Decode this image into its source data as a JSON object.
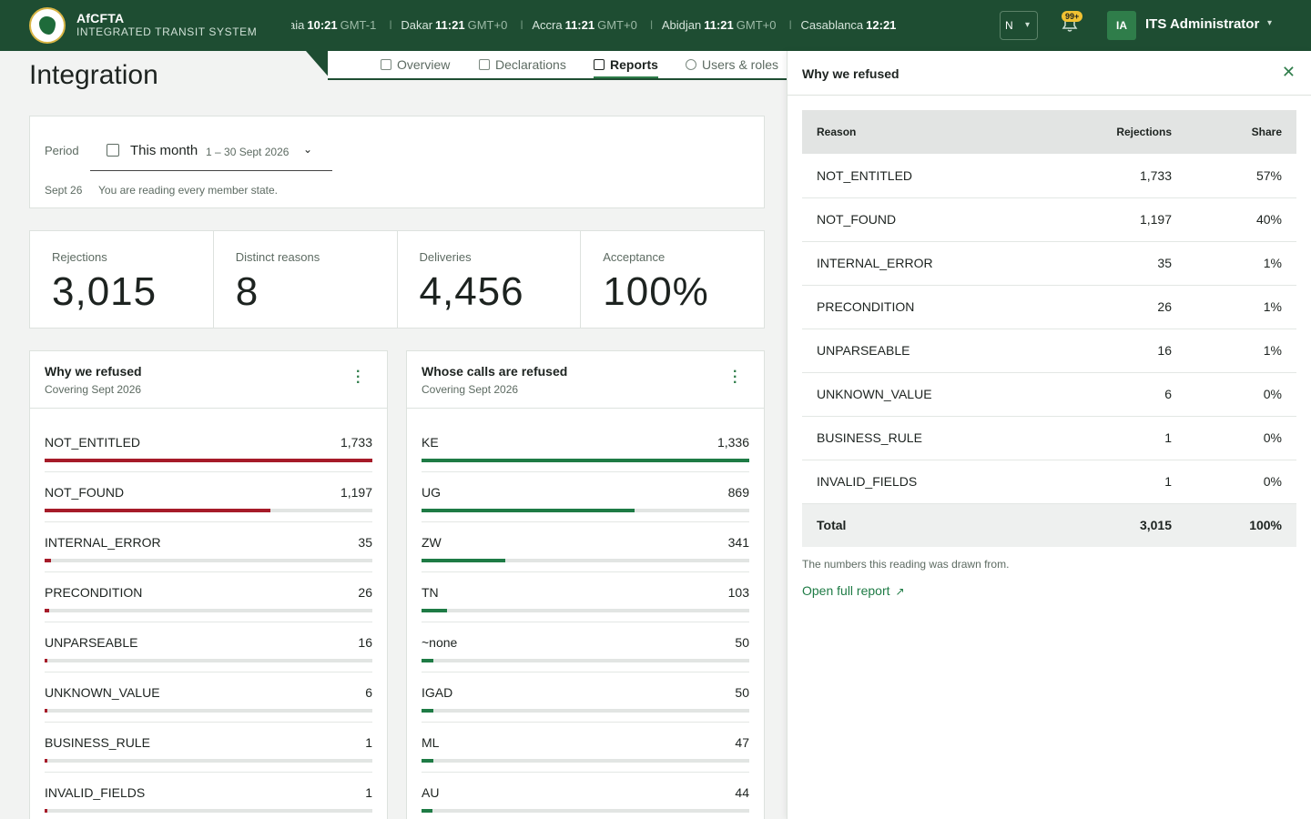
{
  "brand": {
    "name": "AfCFTA",
    "subtitle": "INTEGRATED TRANSIT SYSTEM"
  },
  "clocks": [
    {
      "city": "Praia",
      "time": "10:21",
      "zone": "GMT-1"
    },
    {
      "city": "Dakar",
      "time": "11:21",
      "zone": "GMT+0"
    },
    {
      "city": "Accra",
      "time": "11:21",
      "zone": "GMT+0"
    },
    {
      "city": "Abidjan",
      "time": "11:21",
      "zone": "GMT+0"
    },
    {
      "city": "Casablanca",
      "time": "12:21",
      "zone": ""
    }
  ],
  "header": {
    "language": "N",
    "notifications_badge": "99+",
    "user_initials": "IA",
    "user_name": "ITS Administrator"
  },
  "page": {
    "title": "Integration"
  },
  "tabs": [
    {
      "label": "Overview",
      "icon": "chart-icon"
    },
    {
      "label": "Declarations",
      "icon": "document-icon"
    },
    {
      "label": "Reports",
      "icon": "table-icon",
      "active": true
    },
    {
      "label": "Users & roles",
      "icon": "users-icon"
    }
  ],
  "period": {
    "label": "Period",
    "value": "This month",
    "range": "1 – 30 Sept 2026",
    "note_date": "Sept 26",
    "note": "You are reading every member state."
  },
  "kpis": [
    {
      "label": "Rejections",
      "value": "3,015"
    },
    {
      "label": "Distinct reasons",
      "value": "8"
    },
    {
      "label": "Deliveries",
      "value": "4,456"
    },
    {
      "label": "Acceptance",
      "value": "100%"
    }
  ],
  "reasons_card": {
    "title": "Why we refused",
    "subtitle": "Covering Sept 2026",
    "rows": [
      {
        "name": "NOT_ENTITLED",
        "value": "1,733",
        "fraction": 1.0
      },
      {
        "name": "NOT_FOUND",
        "value": "1,197",
        "fraction": 0.69
      },
      {
        "name": "INTERNAL_ERROR",
        "value": "35",
        "fraction": 0.02
      },
      {
        "name": "PRECONDITION",
        "value": "26",
        "fraction": 0.015
      },
      {
        "name": "UNPARSEABLE",
        "value": "16",
        "fraction": 0.009
      },
      {
        "name": "UNKNOWN_VALUE",
        "value": "6",
        "fraction": 0.004
      },
      {
        "name": "BUSINESS_RULE",
        "value": "1",
        "fraction": 0.002
      },
      {
        "name": "INVALID_FIELDS",
        "value": "1",
        "fraction": 0.002
      }
    ]
  },
  "callers_card": {
    "title": "Whose calls are refused",
    "subtitle": "Covering Sept 2026",
    "rows": [
      {
        "name": "KE",
        "value": "1,336",
        "fraction": 1.0
      },
      {
        "name": "UG",
        "value": "869",
        "fraction": 0.65
      },
      {
        "name": "ZW",
        "value": "341",
        "fraction": 0.255
      },
      {
        "name": "TN",
        "value": "103",
        "fraction": 0.077
      },
      {
        "name": "~none",
        "value": "50",
        "fraction": 0.037
      },
      {
        "name": "IGAD",
        "value": "50",
        "fraction": 0.037
      },
      {
        "name": "ML",
        "value": "47",
        "fraction": 0.035
      },
      {
        "name": "AU",
        "value": "44",
        "fraction": 0.033
      }
    ]
  },
  "panel": {
    "title": "Why we refused",
    "columns": {
      "reason": "Reason",
      "rejections": "Rejections",
      "share": "Share"
    },
    "rows": [
      {
        "reason": "NOT_ENTITLED",
        "rejections": "1,733",
        "share": "57%"
      },
      {
        "reason": "NOT_FOUND",
        "rejections": "1,197",
        "share": "40%"
      },
      {
        "reason": "INTERNAL_ERROR",
        "rejections": "35",
        "share": "1%"
      },
      {
        "reason": "PRECONDITION",
        "rejections": "26",
        "share": "1%"
      },
      {
        "reason": "UNPARSEABLE",
        "rejections": "16",
        "share": "1%"
      },
      {
        "reason": "UNKNOWN_VALUE",
        "rejections": "6",
        "share": "0%"
      },
      {
        "reason": "BUSINESS_RULE",
        "rejections": "1",
        "share": "0%"
      },
      {
        "reason": "INVALID_FIELDS",
        "rejections": "1",
        "share": "0%"
      }
    ],
    "total": {
      "label": "Total",
      "rejections": "3,015",
      "share": "100%"
    },
    "note": "The numbers this reading was drawn from.",
    "link": "Open full report"
  },
  "colors": {
    "brand_green": "#1e4d32",
    "accent_green": "#1e7b45",
    "reject_red": "#a61b29",
    "badge_yellow": "#f1c232"
  }
}
